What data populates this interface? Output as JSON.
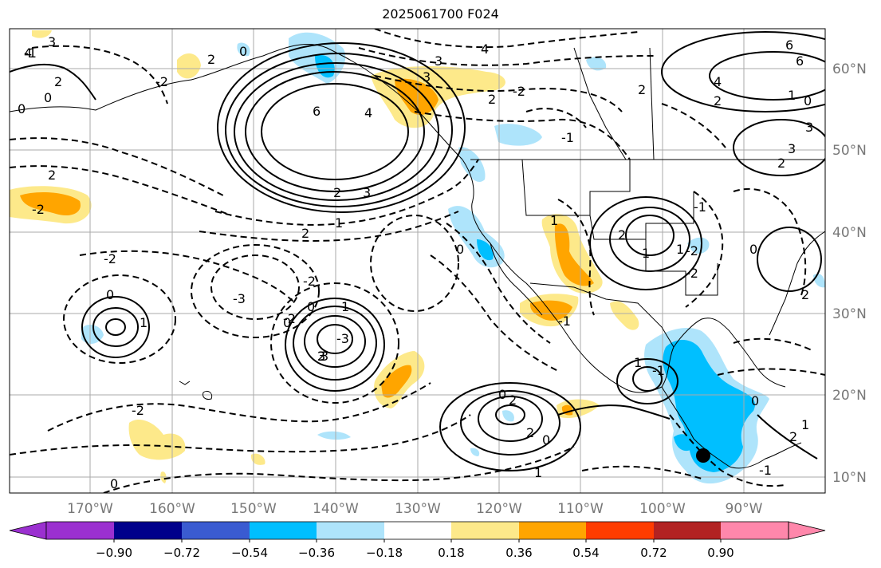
{
  "title": "2025061700 F024",
  "map": {
    "lon_labels": [
      "170°W",
      "160°W",
      "150°W",
      "140°W",
      "130°W",
      "120°W",
      "110°W",
      "100°W",
      "90°W"
    ],
    "lat_labels": [
      "60°N",
      "50°N",
      "40°N",
      "30°N",
      "20°N",
      "10°N"
    ],
    "marker": "filled-circle"
  },
  "colorbar": {
    "ticks": [
      "−0.90",
      "−0.72",
      "−0.54",
      "−0.36",
      "−0.18",
      "0.18",
      "0.36",
      "0.54",
      "0.72",
      "0.90"
    ],
    "colors": [
      "#9b30d0",
      "#00008b",
      "#3a5bd1",
      "#00bfff",
      "#aee4fb",
      "#ffffff",
      "#fde98a",
      "#ffa500",
      "#ff3c00",
      "#b22222",
      "#ff87ab"
    ]
  },
  "fill_colors": {
    "light_blue": "#aee4fb",
    "blue": "#00bfff",
    "yellow": "#fde98a",
    "orange": "#ffa500"
  },
  "contour_labels": [
    "4",
    "3",
    "2",
    "0",
    "6",
    "4",
    "2",
    "3",
    "4",
    "2",
    "-2",
    "0",
    "0",
    "2",
    "-2",
    "1",
    "2",
    "6",
    "4",
    "2",
    "2",
    "3",
    "-1",
    "1",
    "2",
    "2",
    "-2",
    "-2",
    "0",
    "1",
    "2",
    "0",
    "-2",
    "-3",
    "0",
    "1",
    "3",
    "2",
    "-3",
    "2",
    "0",
    "3",
    "1",
    "1",
    "-1",
    "0",
    "-1",
    "2",
    "-2",
    "1",
    "-2",
    "3",
    "2",
    "-1",
    "-2",
    "-1",
    "1",
    "1",
    "0",
    "-1",
    "0",
    "0",
    "0",
    "1",
    "2",
    "6",
    "3",
    "3",
    "0",
    "-2"
  ]
}
